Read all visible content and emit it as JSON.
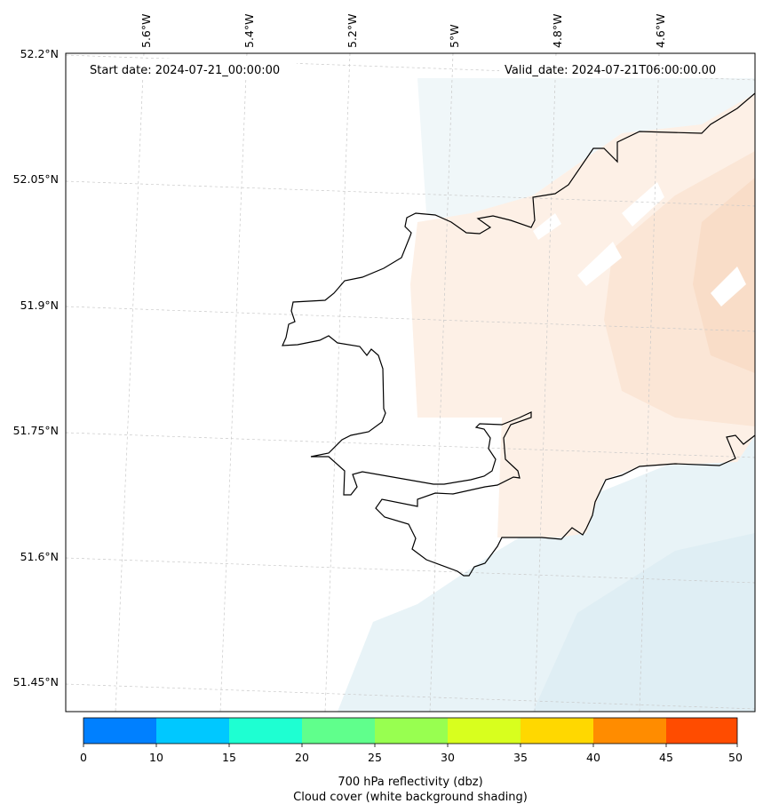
{
  "map": {
    "start_label": "Start date: 2024-07-21_00:00:00",
    "valid_label": "Valid_date: 2024-07-21T06:00:00.00",
    "lon_labels": [
      "5.6°W",
      "5.4°W",
      "5.2°W",
      "5°W",
      "4.8°W",
      "4.6°W"
    ],
    "lat_labels": [
      "52.2°N",
      "52.05°N",
      "51.9°N",
      "51.75°N",
      "51.6°N",
      "51.45°N"
    ]
  },
  "colorbar": {
    "ticks": [
      "0",
      "10",
      "15",
      "20",
      "25",
      "30",
      "35",
      "40",
      "45",
      "50"
    ],
    "colors": [
      "#0080ff",
      "#00c8ff",
      "#1effd2",
      "#60ff8c",
      "#98ff50",
      "#d8ff1e",
      "#ffd800",
      "#ff8c00",
      "#ff4c00"
    ],
    "label_line1": "700 hPa reflectivity (dbz)",
    "label_line2": "Cloud cover (white background shading)"
  }
}
